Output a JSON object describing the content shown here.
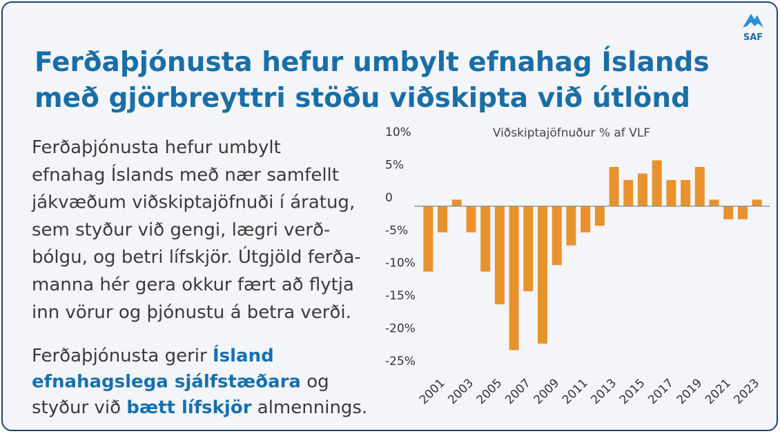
{
  "header": {
    "title_lines": [
      "Ferðaþjónusta hefur umbylt efnahag Íslands",
      "með gjörbreyttri stöðu viðskipta við útlönd"
    ],
    "logo": "SAF"
  },
  "body": {
    "paragraph_lines": [
      "Ferðaþjónusta hefur umbylt",
      "efnahag Íslands með nær samfellt",
      "jákvæðum viðskiptajöfnuði í áratug,",
      "sem styður við gengi, lægri verð-",
      "bólgu, og betri lífskjör. Útgjöld ferða-",
      "manna hér gera okkur fært að flytja",
      "inn vörur og þjónustu á betra verði."
    ],
    "emphasis_lines": [
      [
        {
          "text": "Ferðaþjónusta gerir ",
          "bold": false
        },
        {
          "text": "Ísland",
          "bold": true
        }
      ],
      [
        {
          "text": "efnahagslega sjálfstæðara",
          "bold": true
        },
        {
          "text": " og",
          "bold": false
        }
      ],
      [
        {
          "text": "styður við ",
          "bold": false
        },
        {
          "text": "bætt lífskjör",
          "bold": true
        },
        {
          "text": " almennings.",
          "bold": false
        }
      ]
    ]
  },
  "chart_data": {
    "type": "bar",
    "title": "Viðskiptajöfnuður % af VLF",
    "categories": [
      null,
      "2001",
      null,
      "2003",
      null,
      "2005",
      null,
      "2007",
      null,
      "2009",
      null,
      "2011",
      null,
      "2013",
      null,
      "2015",
      null,
      "2017",
      null,
      "2019",
      null,
      "2021",
      null,
      "2023"
    ],
    "values": [
      -10,
      -4,
      1,
      -4,
      -10,
      -15,
      -22,
      -13,
      -21,
      -9,
      -6,
      -4,
      -3,
      6,
      4,
      5,
      7,
      4,
      4,
      6,
      1,
      -2,
      -2,
      1
    ],
    "color": "#e8922e",
    "ylim": [
      -25,
      10
    ],
    "yticks": [
      {
        "value": 10,
        "label": "10%"
      },
      {
        "value": 5,
        "label": "5%"
      },
      0,
      {
        "value": -5,
        "label": "-5%"
      },
      {
        "value": -10,
        "label": "-10%"
      },
      {
        "value": -15,
        "label": "-15%"
      },
      {
        "value": -20,
        "label": "-20%"
      },
      {
        "value": -25,
        "label": "-25%"
      }
    ],
    "grid": false
  }
}
